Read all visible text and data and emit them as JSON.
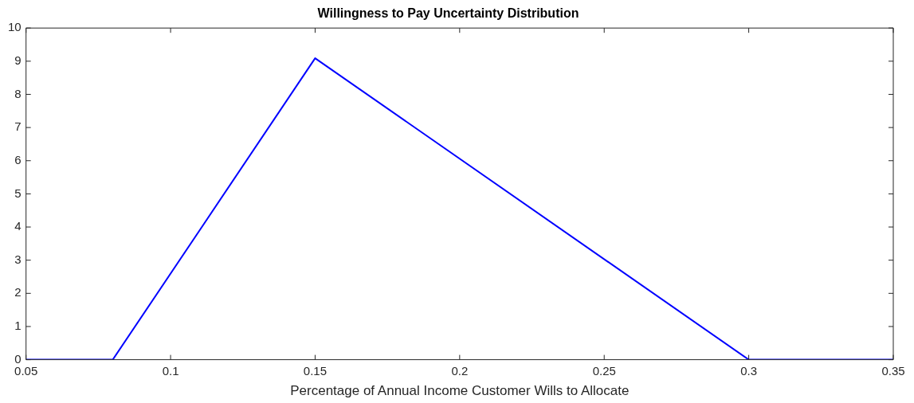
{
  "chart_data": {
    "type": "line",
    "title": "Willingness to Pay Uncertainty Distribution",
    "xlabel": "Percentage of Annual Income Customer Wills to Allocate",
    "x": [
      0.05,
      0.08,
      0.15,
      0.3,
      0.35
    ],
    "series": [
      {
        "color": "#0000ff",
        "values": [
          0,
          0,
          9.09,
          0,
          0
        ]
      }
    ],
    "xlim": [
      0.05,
      0.35
    ],
    "xticks": [
      0.05,
      0.1,
      0.15,
      0.2,
      0.25,
      0.3,
      0.35
    ],
    "ylim": [
      0,
      10
    ],
    "yticks": [
      0,
      1,
      2,
      3,
      4,
      5,
      6,
      7,
      8,
      9,
      10
    ],
    "grid": false,
    "legend": false,
    "marker": "none",
    "line_style": "solid"
  }
}
